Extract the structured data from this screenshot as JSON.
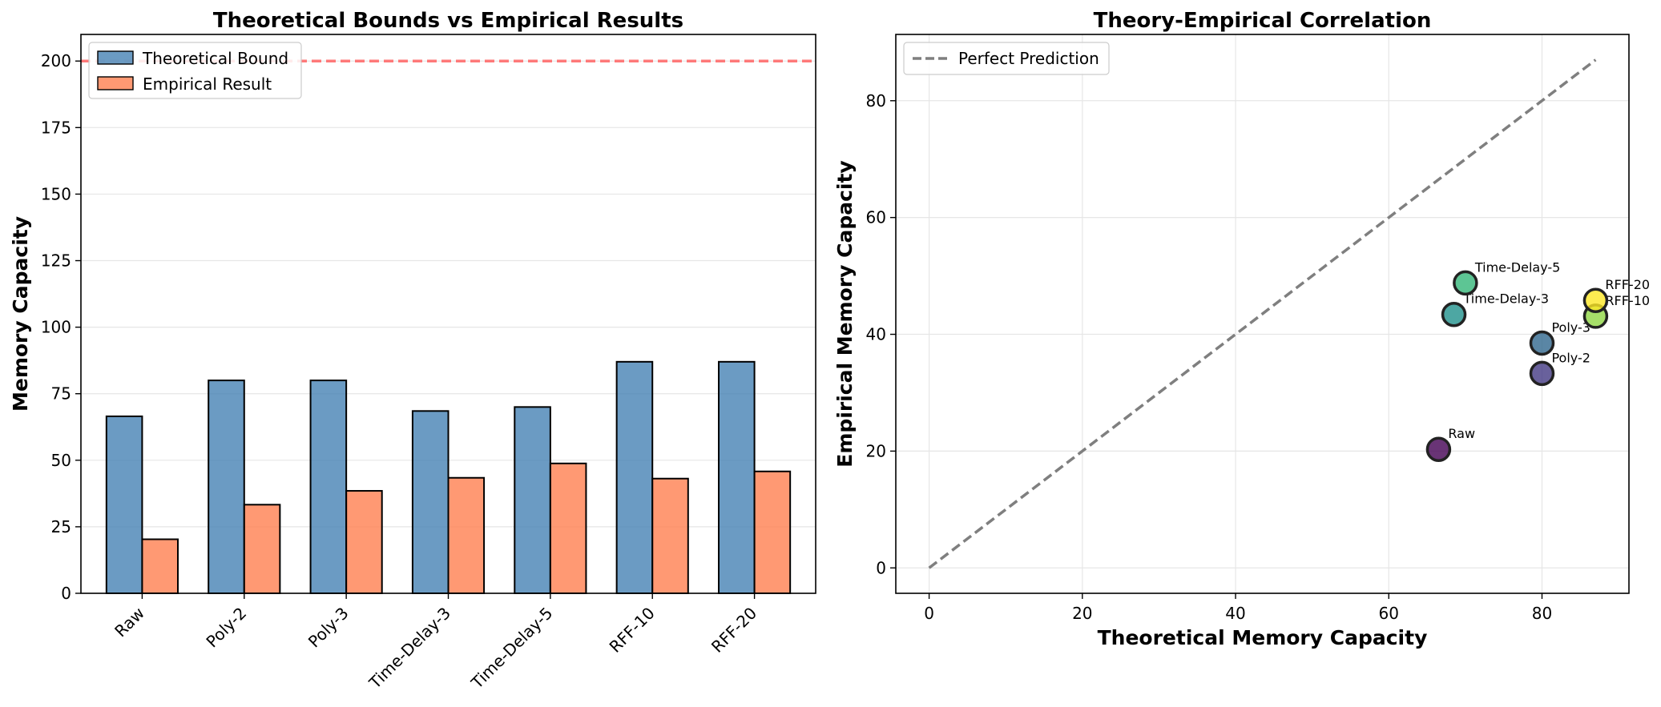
{
  "colors": {
    "theoretical": "#4682b4",
    "empirical": "#ff7f50",
    "reference_line": "#ff6b6b",
    "perfect_line": "#7f7f7f",
    "bar_edge": "#000000"
  },
  "chart_data": [
    {
      "type": "bar",
      "title": "Theoretical Bounds vs Empirical Results",
      "xlabel": "",
      "ylabel": "Memory Capacity",
      "categories": [
        "Raw",
        "Poly-2",
        "Poly-3",
        "Time-Delay-3",
        "Time-Delay-5",
        "RFF-10",
        "RFF-20"
      ],
      "series": [
        {
          "name": "Theoretical Bound",
          "values": [
            66.5,
            80,
            80,
            68.5,
            70,
            87,
            87
          ]
        },
        {
          "name": "Empirical Result",
          "values": [
            20.3,
            33.3,
            38.5,
            43.4,
            48.8,
            43.1,
            45.8
          ]
        }
      ],
      "reference_line": {
        "y": 200,
        "style": "dashed"
      },
      "ylim": [
        0,
        210
      ],
      "yticks": [
        0,
        25,
        50,
        75,
        100,
        125,
        150,
        175,
        200
      ],
      "grid": "y",
      "legend": "top-left"
    },
    {
      "type": "scatter",
      "title": "Theory-Empirical Correlation",
      "xlabel": "Theoretical Memory Capacity",
      "ylabel": "Empirical Memory Capacity",
      "points": [
        {
          "label": "Raw",
          "x": 66.5,
          "y": 20.3,
          "color": "#440154"
        },
        {
          "label": "Poly-2",
          "x": 80,
          "y": 33.3,
          "color": "#443983"
        },
        {
          "label": "Poly-3",
          "x": 80,
          "y": 38.5,
          "color": "#31688e"
        },
        {
          "label": "Time-Delay-3",
          "x": 68.5,
          "y": 43.4,
          "color": "#21918c"
        },
        {
          "label": "Time-Delay-5",
          "x": 70,
          "y": 48.8,
          "color": "#35b779"
        },
        {
          "label": "RFF-10",
          "x": 87,
          "y": 43.1,
          "color": "#90d743"
        },
        {
          "label": "RFF-20",
          "x": 87,
          "y": 45.8,
          "color": "#fde725"
        }
      ],
      "perfect_line": {
        "name": "Perfect Prediction",
        "from": [
          0,
          0
        ],
        "to": [
          87,
          87
        ]
      },
      "xlim": [
        -4.35,
        91.35
      ],
      "ylim": [
        -4.35,
        91.35
      ],
      "xticks": [
        0,
        20,
        40,
        60,
        80
      ],
      "yticks": [
        0,
        20,
        40,
        60,
        80
      ],
      "grid": "both",
      "legend": "top-left"
    }
  ]
}
